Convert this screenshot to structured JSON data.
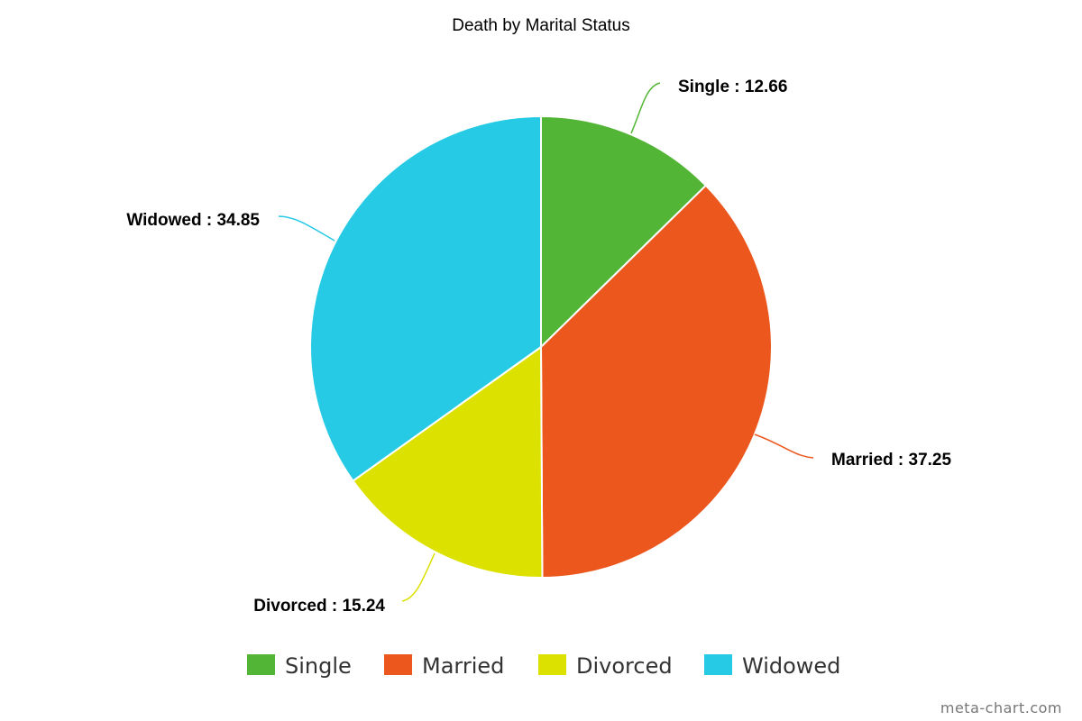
{
  "chart_data": {
    "type": "pie",
    "title": "Death by Marital Status",
    "categories": [
      "Single",
      "Married",
      "Divorced",
      "Widowed"
    ],
    "values": [
      12.66,
      37.25,
      15.24,
      34.85
    ],
    "colors": [
      "#52b535",
      "#ec571d",
      "#dce100",
      "#26cae4"
    ],
    "slice_labels": [
      "Single : 12.66",
      "Married : 37.25",
      "Divorced : 15.24",
      "Widowed : 34.85"
    ],
    "legend": {
      "position": "bottom",
      "items": [
        "Single",
        "Married",
        "Divorced",
        "Widowed"
      ]
    }
  },
  "watermark": "meta-chart.com"
}
